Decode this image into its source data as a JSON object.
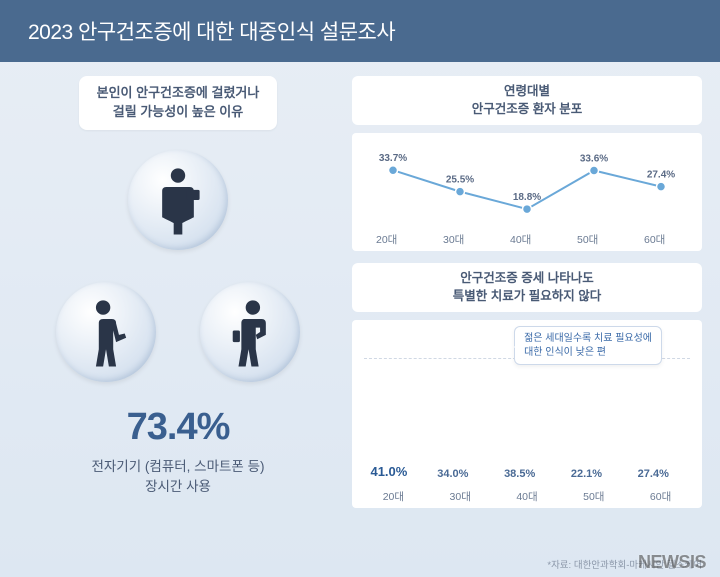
{
  "title": "2023 안구건조증에 대한 대중인식 설문조사",
  "left": {
    "subtitle_line1": "본인이 안구건조증에 걸렸거나",
    "subtitle_line2": "걸릴 가능성이 높은 이유",
    "big_pct": "73.4%",
    "caption_line1": "전자기기 (컴퓨터, 스마트폰 등)",
    "caption_line2": "장시간 사용",
    "silhouette_color": "#2a3548",
    "circle_bg": "#e2ebf5"
  },
  "line_chart": {
    "title_line1": "연령대별",
    "title_line2": "안구건조증 환자 분포",
    "categories": [
      "20대",
      "30대",
      "40대",
      "50대",
      "60대"
    ],
    "values": [
      33.7,
      25.5,
      18.8,
      33.6,
      27.4
    ],
    "ylim": [
      15,
      38
    ],
    "line_color": "#6aa8d8",
    "background_color": "#ffffff",
    "label_fontsize": 10
  },
  "bar_chart": {
    "title_line1": "안구건조증 증세 나타나도",
    "title_line2": "특별한 치료가 필요하지 않다",
    "callout_line1": "젊은 세대일수록 치료 필요성에",
    "callout_line2": "대한 인식이 낮은 편",
    "categories": [
      "20대",
      "30대",
      "40대",
      "50대",
      "60대"
    ],
    "values": [
      41.0,
      34.0,
      38.5,
      22.1,
      27.4
    ],
    "bar_color": "#6aa8d8",
    "ylim": [
      0,
      45
    ],
    "emphasis_index": 0,
    "background_color": "#ffffff"
  },
  "source": "*자료: 대한안과학회-마케시안 헬스케어",
  "watermark": "NEWSIS",
  "colors": {
    "header_bg": "#4a6a8f",
    "page_bg": "#e4ecf5",
    "text_primary": "#495a75",
    "accent": "#3a5f8f"
  }
}
